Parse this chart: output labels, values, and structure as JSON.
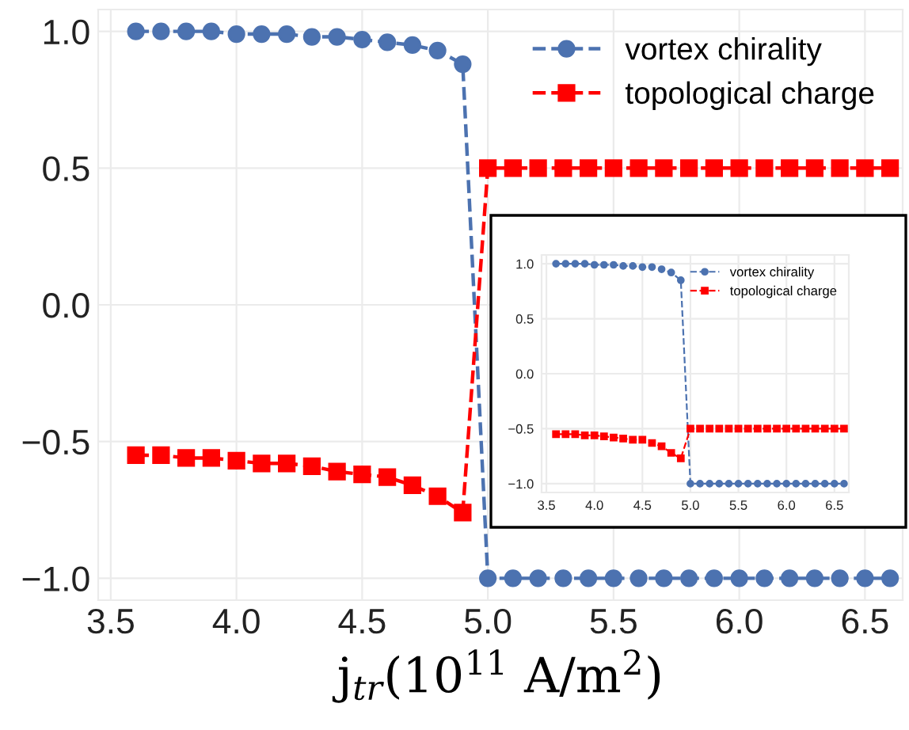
{
  "chart_data": [
    {
      "type": "line",
      "xlabel": "j$_{tr}$(10$^{11}$ A/m$^{2}$)",
      "x": [
        3.6,
        3.7,
        3.8,
        3.9,
        4.0,
        4.1,
        4.2,
        4.3,
        4.4,
        4.5,
        4.6,
        4.7,
        4.8,
        4.9,
        5.0,
        5.1,
        5.2,
        5.3,
        5.4,
        5.5,
        5.6,
        5.7,
        5.8,
        5.9,
        6.0,
        6.1,
        6.2,
        6.3,
        6.4,
        6.5,
        6.6
      ],
      "series": [
        {
          "name": "vortex chirality",
          "color": "#4c72b0",
          "marker": "circle",
          "values": [
            1.0,
            1.0,
            1.0,
            1.0,
            0.99,
            0.99,
            0.99,
            0.98,
            0.98,
            0.97,
            0.96,
            0.95,
            0.93,
            0.88,
            -1,
            -1,
            -1,
            -1,
            -1,
            -1,
            -1,
            -1,
            -1,
            -1,
            -1,
            -1,
            -1,
            -1,
            -1,
            -1,
            -1
          ]
        },
        {
          "name": "topological charge",
          "color": "#ff0000",
          "marker": "square",
          "values": [
            -0.55,
            -0.55,
            -0.56,
            -0.56,
            -0.57,
            -0.58,
            -0.58,
            -0.59,
            -0.61,
            -0.62,
            -0.63,
            -0.66,
            -0.7,
            -0.76,
            0.5,
            0.5,
            0.5,
            0.5,
            0.5,
            0.5,
            0.5,
            0.5,
            0.5,
            0.5,
            0.5,
            0.5,
            0.5,
            0.5,
            0.5,
            0.5,
            0.5
          ]
        }
      ],
      "line_style": "dashed",
      "xlim": [
        3.45,
        6.65
      ],
      "ylim": [
        -1.08,
        1.08
      ],
      "xticks": [
        3.5,
        {
          "value": 4,
          "label": "4.0"
        },
        4.5,
        {
          "value": 5,
          "label": "5.0"
        },
        5.5,
        {
          "value": 6,
          "label": "6.0"
        },
        6.5
      ],
      "yticks": [
        {
          "value": -1,
          "label": "−1.0"
        },
        {
          "value": -0.5,
          "label": "−0.5"
        },
        {
          "value": 0,
          "label": "0.0"
        },
        0.5,
        {
          "value": 1,
          "label": "1.0"
        }
      ],
      "grid": true,
      "legend": "top right"
    },
    {
      "type": "line",
      "x": [
        3.6,
        3.7,
        3.8,
        3.9,
        4.0,
        4.1,
        4.2,
        4.3,
        4.4,
        4.5,
        4.6,
        4.7,
        4.8,
        4.9,
        5.0,
        5.1,
        5.2,
        5.3,
        5.4,
        5.5,
        5.6,
        5.7,
        5.8,
        5.9,
        6.0,
        6.1,
        6.2,
        6.3,
        6.4,
        6.5,
        6.6
      ],
      "series": [
        {
          "name": "vortex chirality",
          "color": "#4c72b0",
          "marker": "circle",
          "values": [
            1.0,
            1.0,
            1.0,
            1.0,
            0.99,
            0.99,
            0.99,
            0.98,
            0.98,
            0.97,
            0.97,
            0.95,
            0.92,
            0.85,
            -1,
            -1,
            -1,
            -1,
            -1,
            -1,
            -1,
            -1,
            -1,
            -1,
            -1,
            -1,
            -1,
            -1,
            -1,
            -1,
            -1
          ]
        },
        {
          "name": "topological charge",
          "color": "#ff0000",
          "marker": "square",
          "values": [
            -0.55,
            -0.55,
            -0.55,
            -0.56,
            -0.56,
            -0.57,
            -0.58,
            -0.59,
            -0.6,
            -0.6,
            -0.63,
            -0.66,
            -0.72,
            -0.77,
            -0.5,
            -0.5,
            -0.5,
            -0.5,
            -0.5,
            -0.5,
            -0.5,
            -0.5,
            -0.5,
            -0.5,
            -0.5,
            -0.5,
            -0.5,
            -0.5,
            -0.5,
            -0.5,
            -0.5
          ]
        }
      ],
      "line_style": "dashed",
      "xlim": [
        3.45,
        6.65
      ],
      "ylim": [
        -1.08,
        1.08
      ],
      "xticks": [
        3.5,
        {
          "value": 4,
          "label": "4.0"
        },
        4.5,
        {
          "value": 5,
          "label": "5.0"
        },
        5.5,
        {
          "value": 6,
          "label": "6.0"
        },
        6.5
      ],
      "yticks": [
        {
          "value": -1,
          "label": "−1.0"
        },
        {
          "value": -0.5,
          "label": "−0.5"
        },
        {
          "value": 0,
          "label": "0.0"
        },
        0.5,
        {
          "value": 1,
          "label": "1.0"
        }
      ],
      "grid": true,
      "legend": "top right"
    }
  ]
}
